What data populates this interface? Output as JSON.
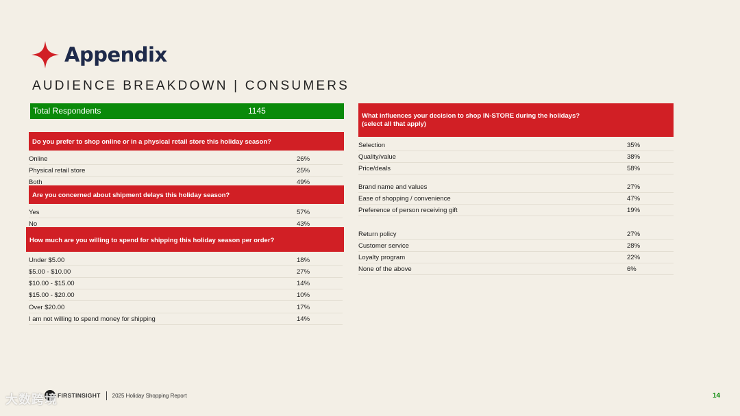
{
  "header": {
    "title": "Appendix",
    "subtitle": "AUDIENCE BREAKDOWN | CONSUMERS"
  },
  "respondents": {
    "label": "Total Respondents",
    "value": "1145"
  },
  "q1": {
    "question": "Do you prefer to shop online or in a physical retail store this holiday season?",
    "rows": [
      {
        "answer": "Online",
        "pct": "26%"
      },
      {
        "answer": "Physical retail store",
        "pct": "25%"
      },
      {
        "answer": "Both",
        "pct": "49%"
      }
    ]
  },
  "q2": {
    "question": "Are you concerned about shipment delays this holiday season?",
    "rows": [
      {
        "answer": "Yes",
        "pct": "57%"
      },
      {
        "answer": "No",
        "pct": "43%"
      }
    ]
  },
  "q3": {
    "question": "How much are you willing to spend for shipping this holiday season per order?",
    "rows": [
      {
        "answer": "Under $5.00",
        "pct": "18%"
      },
      {
        "answer": "$5.00 - $10.00",
        "pct": "27%"
      },
      {
        "answer": "$10.00 - $15.00",
        "pct": "14%"
      },
      {
        "answer": "$15.00 - $20.00",
        "pct": "10%"
      },
      {
        "answer": "Over $20.00",
        "pct": "17%"
      },
      {
        "answer": "I am not willing to spend money for shipping",
        "pct": "14%"
      }
    ]
  },
  "q4": {
    "question_line1": "What influences your decision to shop IN-STORE during the holidays?",
    "question_line2": "(select all that apply)",
    "rows": [
      {
        "answer": "Selection",
        "pct": "35%"
      },
      {
        "answer": "Quality/value",
        "pct": "38%"
      },
      {
        "answer": "Price/deals",
        "pct": "58%"
      },
      {
        "answer": "Brand name and values",
        "pct": "27%"
      },
      {
        "answer": "Ease of shopping / convenience",
        "pct": "47%"
      },
      {
        "answer": "Preference of person receiving gift",
        "pct": "19%"
      },
      {
        "answer": "Return policy",
        "pct": "27%"
      },
      {
        "answer": "Customer service",
        "pct": "28%"
      },
      {
        "answer": "Loyalty program",
        "pct": "22%"
      },
      {
        "answer": "None of the above",
        "pct": "6%"
      }
    ]
  },
  "footer": {
    "brand": "FIRSTINSIGHT",
    "report": "2025 Holiday Shopping Report",
    "page": "14",
    "watermark": "大数跨境"
  },
  "colors": {
    "accent_red": "#d11f25",
    "accent_green": "#0a8a0a",
    "title_navy": "#1e2a4a",
    "background": "#f3efe6"
  }
}
